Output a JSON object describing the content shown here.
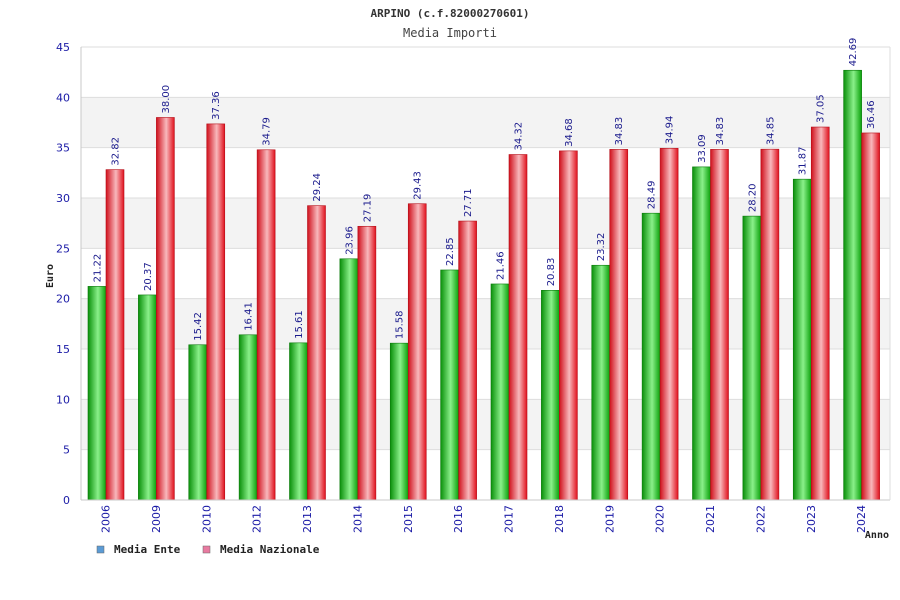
{
  "chart_data": {
    "type": "bar",
    "title": "ARPINO (c.f.82000270601)",
    "subtitle": "Media Importi",
    "xlabel": "Anno",
    "ylabel": "Euro",
    "ylim": [
      0,
      45
    ],
    "yticks": [
      0,
      5,
      10,
      15,
      20,
      25,
      30,
      35,
      40,
      45
    ],
    "grid": true,
    "legend_position": "bottom-left",
    "categories": [
      "2006",
      "2009",
      "2010",
      "2012",
      "2013",
      "2014",
      "2015",
      "2016",
      "2017",
      "2018",
      "2019",
      "2020",
      "2021",
      "2022",
      "2023",
      "2024"
    ],
    "series": [
      {
        "name": "Media Ente",
        "color": "#1fbf1f",
        "legend_color": "#5b9bd5",
        "values": [
          21.22,
          20.37,
          15.42,
          16.41,
          15.61,
          23.96,
          15.58,
          22.85,
          21.46,
          20.83,
          23.32,
          28.49,
          33.09,
          28.2,
          31.87,
          42.69
        ],
        "labels": [
          "21.22",
          "20.37",
          "15.42",
          "16.41",
          "15.61",
          "23.96",
          "15.58",
          "22.85",
          "21.46",
          "20.83",
          "23.32",
          "28.49",
          "33.09",
          "28.20",
          "31.87",
          "42.69"
        ]
      },
      {
        "name": "Media Nazionale",
        "color": "#e8202c",
        "legend_color": "#e87aa0",
        "values": [
          32.82,
          38.0,
          37.36,
          34.79,
          29.24,
          27.19,
          29.43,
          27.71,
          34.32,
          34.68,
          34.83,
          34.94,
          34.83,
          34.85,
          37.05,
          36.46
        ],
        "labels": [
          "32.82",
          "38.00",
          "37.36",
          "34.79",
          "29.24",
          "27.19",
          "29.43",
          "27.71",
          "34.32",
          "34.68",
          "34.83",
          "34.94",
          "34.83",
          "34.85",
          "37.05",
          "36.46"
        ]
      }
    ]
  }
}
